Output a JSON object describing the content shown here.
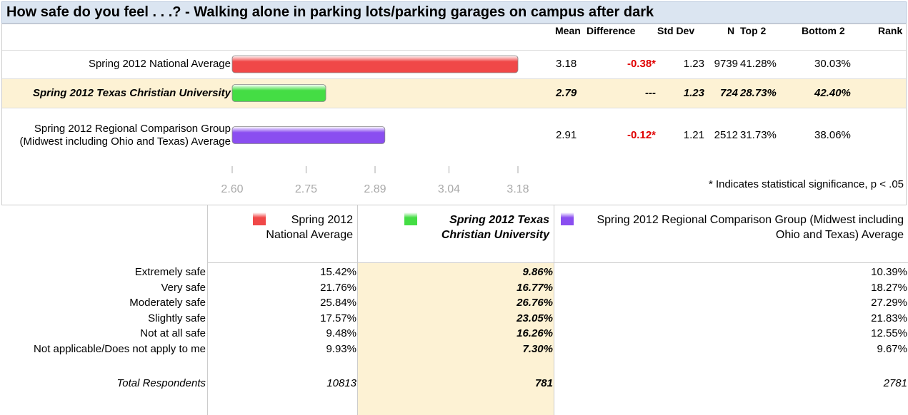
{
  "title": "How safe do you feel . . .? - Walking alone in parking lots/parking garages on campus after dark",
  "summary": {
    "headers": [
      "Mean",
      "Difference",
      "Std Dev",
      "N",
      "Top 2",
      "Bottom 2",
      "Rank"
    ],
    "rows": [
      {
        "label": "Spring 2012 National Average",
        "color": "#f04848",
        "mean": 3.18,
        "difference": "-0.38*",
        "std_dev": 1.23,
        "n": 9739,
        "top_2": "41.28%",
        "bottom_2": "30.03%"
      },
      {
        "label": "Spring 2012 Texas Christian University",
        "color": "#44dd44",
        "mean": 2.79,
        "difference": "---",
        "std_dev": 1.23,
        "n": 724,
        "top_2": "28.73%",
        "bottom_2": "42.40%",
        "highlight": true
      },
      {
        "label": "Spring 2012 Regional Comparison Group (Midwest including Ohio and Texas) Average",
        "color": "#8a4ef0",
        "mean": 2.91,
        "difference": "-0.12*",
        "std_dev": 1.21,
        "n": 2512,
        "top_2": "31.73%",
        "bottom_2": "38.06%"
      }
    ],
    "xlim": [
      2.6,
      3.18
    ],
    "xticks": [
      {
        "value": 2.6,
        "label": "2.60"
      },
      2.75,
      2.89,
      3.04,
      3.18
    ],
    "footnote": "* Indicates statistical significance, p < .05"
  },
  "detail": {
    "groups": [
      "Spring 2012 National Average",
      "Spring 2012 Texas Christian University",
      "Spring 2012 Regional Comparison Group (Midwest including Ohio and Texas) Average"
    ],
    "rows": [
      {
        "label": "Extremely safe",
        "values": [
          "15.42%",
          "9.86%",
          "10.39%"
        ]
      },
      {
        "label": "Very safe",
        "values": [
          "21.76%",
          "16.77%",
          "18.27%"
        ]
      },
      {
        "label": "Moderately safe",
        "values": [
          "25.84%",
          "26.76%",
          "27.29%"
        ]
      },
      {
        "label": "Slightly safe",
        "values": [
          "17.57%",
          "23.05%",
          "21.83%"
        ]
      },
      {
        "label": "Not at all safe",
        "values": [
          "9.48%",
          "16.26%",
          "12.55%"
        ]
      },
      {
        "label": "Not applicable/Does not apply to me",
        "values": [
          "9.93%",
          "7.30%",
          "9.67%"
        ]
      }
    ],
    "total": {
      "label": "Total Respondents",
      "values": [
        10813,
        781,
        2781
      ]
    }
  }
}
